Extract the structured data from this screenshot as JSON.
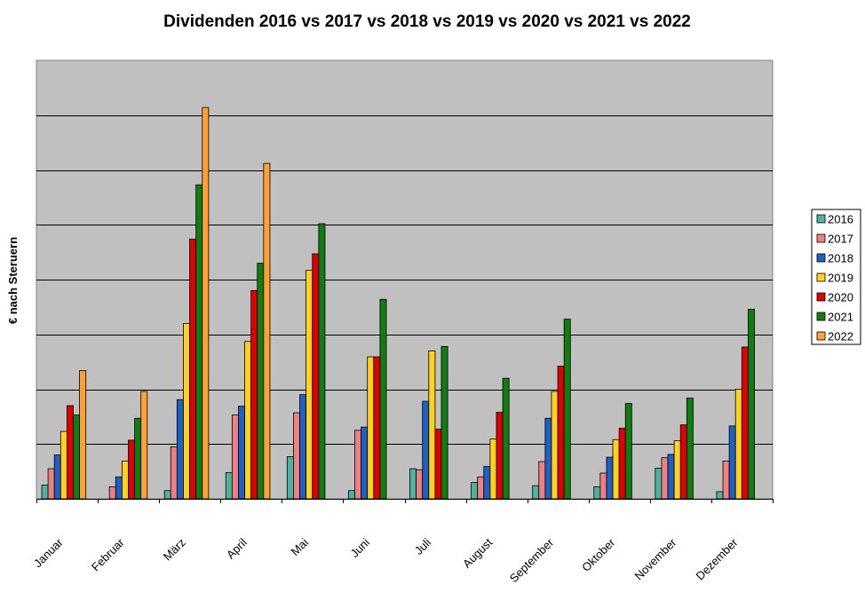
{
  "chart_data": {
    "type": "bar",
    "title": "Dividenden 2016 vs 2017 vs 2018 vs 2019 vs 2020 vs 2021 vs 2022",
    "xlabel": "",
    "ylabel": "€ nach Steruern",
    "ylim": [
      0,
      8
    ],
    "y_ticks_labeled": false,
    "grid": "horizontal",
    "legend_position": "right",
    "categories": [
      "Januar",
      "Februar",
      "März",
      "April",
      "Mai",
      "Juni",
      "Juli",
      "August",
      "September",
      "Oktober",
      "November",
      "Dezember"
    ],
    "series": [
      {
        "name": "2016",
        "color": "#4cb3a0",
        "values": [
          0.25,
          0.0,
          0.15,
          0.48,
          0.77,
          0.15,
          0.55,
          0.3,
          0.24,
          0.22,
          0.56,
          0.13
        ]
      },
      {
        "name": "2017",
        "color": "#f08080",
        "values": [
          0.55,
          0.22,
          0.95,
          1.53,
          1.57,
          1.25,
          0.53,
          0.4,
          0.68,
          0.47,
          0.75,
          0.69
        ]
      },
      {
        "name": "2018",
        "color": "#1e5fc8",
        "values": [
          0.8,
          0.4,
          1.81,
          1.69,
          1.9,
          1.31,
          1.78,
          0.59,
          1.47,
          0.76,
          0.81,
          1.33
        ]
      },
      {
        "name": "2019",
        "color": "#ffd21e",
        "values": [
          1.23,
          0.69,
          3.2,
          2.87,
          4.17,
          2.59,
          2.7,
          1.09,
          1.96,
          1.08,
          1.06,
          2.0
        ]
      },
      {
        "name": "2020",
        "color": "#e00000",
        "values": [
          1.7,
          1.07,
          4.74,
          3.8,
          4.47,
          2.59,
          1.27,
          1.58,
          2.42,
          1.29,
          1.35,
          2.77
        ]
      },
      {
        "name": "2021",
        "color": "#0f7d0f",
        "values": [
          1.53,
          1.47,
          5.73,
          4.3,
          5.02,
          3.64,
          2.78,
          2.2,
          3.28,
          1.74,
          1.84,
          3.46
        ]
      },
      {
        "name": "2022",
        "color": "#ffa032",
        "values": [
          2.34,
          1.96,
          7.14,
          6.12,
          null,
          null,
          null,
          null,
          null,
          null,
          null,
          null
        ]
      }
    ],
    "colors": {
      "plot_background": "#c0c0c0",
      "gridline": "#000000"
    }
  }
}
